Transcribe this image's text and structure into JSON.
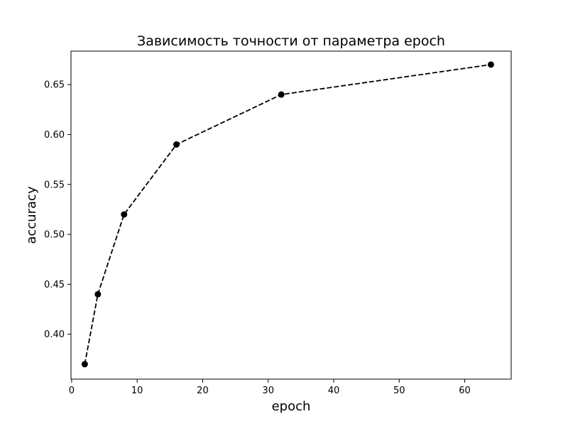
{
  "chart_data": {
    "type": "line",
    "title": "Зависимость точности от параметра epoch",
    "xlabel": "epoch",
    "ylabel": "accuracy",
    "x": [
      2,
      4,
      8,
      16,
      32,
      64
    ],
    "series": [
      {
        "values": [
          0.37,
          0.44,
          0.52,
          0.59,
          0.64,
          0.67
        ],
        "color": "#000000",
        "line_style": "dashed",
        "marker": "circle"
      }
    ],
    "xlim": [
      -0.1,
      67.1
    ],
    "ylim": [
      0.355,
      0.6835
    ],
    "x_ticks": [
      0,
      10,
      20,
      30,
      40,
      50,
      60
    ],
    "x_tick_labels": [
      "0",
      "10",
      "20",
      "30",
      "40",
      "50",
      "60"
    ],
    "y_ticks": [
      0.4,
      0.45,
      0.5,
      0.55,
      0.6,
      0.65
    ],
    "y_tick_labels": [
      "0.40",
      "0.45",
      "0.50",
      "0.55",
      "0.60",
      "0.65"
    ],
    "grid": false,
    "legend": "none"
  }
}
